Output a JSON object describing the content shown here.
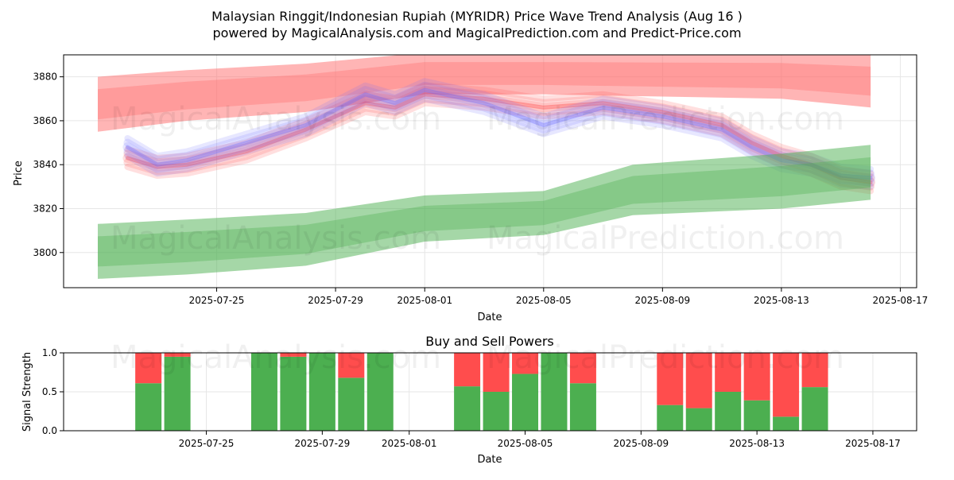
{
  "figure": {
    "title_line1": "Malaysian Ringgit/Indonesian Rupiah (MYRIDR) Price Wave Trend Analysis (Aug 16 )",
    "title_line2": "powered by MagicalAnalysis.com and MagicalPrediction.com and Predict-Price.com",
    "watermark_left": "MagicalAnalysis.com",
    "watermark_right": "MagicalPrediction.com"
  },
  "chart_data": [
    {
      "type": "area",
      "name": "price-wave-chart",
      "xlabel": "Date",
      "ylabel": "Price",
      "xlim": [
        "2025-07-20",
        "2025-08-17"
      ],
      "ylim": [
        3784,
        3890
      ],
      "grid": true,
      "x_ticks": [
        "2025-07-25",
        "2025-07-29",
        "2025-08-01",
        "2025-08-05",
        "2025-08-09",
        "2025-08-13",
        "2025-08-17"
      ],
      "y_ticks": [
        3800,
        3820,
        3840,
        3860,
        3880
      ],
      "series": [
        {
          "group": "red-upper-band",
          "color": "#ff6b6b",
          "x": [
            "2025-07-21",
            "2025-07-24",
            "2025-07-28",
            "2025-08-01",
            "2025-08-05",
            "2025-08-09",
            "2025-08-13",
            "2025-08-16"
          ],
          "upper": [
            3880,
            3883,
            3886,
            3891,
            3891,
            3891,
            3891,
            3890
          ],
          "lower": [
            3855,
            3860,
            3864,
            3872,
            3872,
            3871,
            3870,
            3866
          ]
        },
        {
          "group": "red-wave",
          "color": "#ff3b3b",
          "x": [
            "2025-07-22",
            "2025-07-23",
            "2025-07-24",
            "2025-07-26",
            "2025-07-28",
            "2025-07-30",
            "2025-07-31",
            "2025-08-01",
            "2025-08-03",
            "2025-08-05",
            "2025-08-07",
            "2025-08-09",
            "2025-08-11",
            "2025-08-12",
            "2025-08-13",
            "2025-08-14",
            "2025-08-15",
            "2025-08-16"
          ],
          "values": [
            3843,
            3839,
            3840,
            3846,
            3856,
            3868,
            3866,
            3872,
            3870,
            3866,
            3868,
            3864,
            3858,
            3850,
            3844,
            3840,
            3834,
            3832
          ]
        },
        {
          "group": "blue-wave",
          "color": "#6a6aff",
          "x": [
            "2025-07-22",
            "2025-07-23",
            "2025-07-24",
            "2025-07-26",
            "2025-07-28",
            "2025-07-30",
            "2025-07-31",
            "2025-08-01",
            "2025-08-03",
            "2025-08-05",
            "2025-08-07",
            "2025-08-09",
            "2025-08-11",
            "2025-08-12",
            "2025-08-13",
            "2025-08-14",
            "2025-08-15",
            "2025-08-16"
          ],
          "values": [
            3848,
            3840,
            3842,
            3850,
            3858,
            3872,
            3868,
            3874,
            3868,
            3858,
            3866,
            3862,
            3856,
            3848,
            3842,
            3840,
            3835,
            3834
          ]
        },
        {
          "group": "green-lower-band",
          "color": "#4caf50",
          "x": [
            "2025-07-21",
            "2025-07-24",
            "2025-07-28",
            "2025-08-01",
            "2025-08-05",
            "2025-08-08",
            "2025-08-13",
            "2025-08-16"
          ],
          "upper": [
            3813,
            3815,
            3818,
            3826,
            3828,
            3840,
            3845,
            3849
          ],
          "lower": [
            3788,
            3790,
            3794,
            3805,
            3808,
            3817,
            3820,
            3824
          ]
        }
      ]
    },
    {
      "type": "bar",
      "name": "buy-sell-powers",
      "title": "Buy and Sell Powers",
      "xlabel": "Date",
      "ylabel": "Signal Strength",
      "ylim": [
        0,
        1
      ],
      "grid": true,
      "x_ticks": [
        "2025-07-25",
        "2025-07-29",
        "2025-08-01",
        "2025-08-05",
        "2025-08-09",
        "2025-08-13",
        "2025-08-17"
      ],
      "y_ticks": [
        "0.0",
        "0.5",
        "1.0"
      ],
      "buy_color": "#4caf50",
      "sell_color": "#ff4d4d",
      "categories": [
        "2025-07-23",
        "2025-07-24",
        "2025-07-27",
        "2025-07-28",
        "2025-07-29",
        "2025-07-30",
        "2025-07-31",
        "2025-08-03",
        "2025-08-04",
        "2025-08-05",
        "2025-08-06",
        "2025-08-07",
        "2025-08-10",
        "2025-08-11",
        "2025-08-12",
        "2025-08-13",
        "2025-08-14",
        "2025-08-15"
      ],
      "series": [
        {
          "name": "Buy",
          "values": [
            0.61,
            0.95,
            1.0,
            0.95,
            1.0,
            0.68,
            1.0,
            0.57,
            0.5,
            0.73,
            1.0,
            0.61,
            0.33,
            0.29,
            0.5,
            0.39,
            0.18,
            0.56
          ]
        },
        {
          "name": "Sell",
          "values": [
            0.39,
            0.05,
            0.0,
            0.05,
            0.0,
            0.32,
            0.0,
            0.43,
            0.5,
            0.27,
            0.0,
            0.39,
            0.67,
            0.71,
            0.5,
            0.61,
            0.82,
            0.44
          ]
        }
      ]
    }
  ]
}
